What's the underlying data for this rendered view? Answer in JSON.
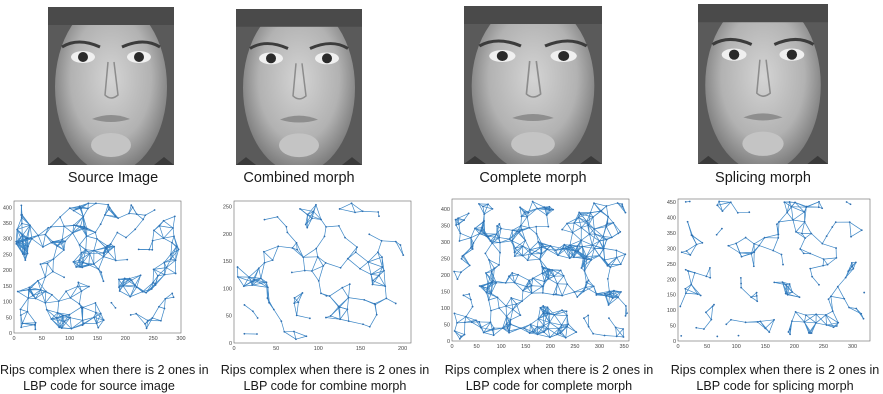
{
  "panels": [
    {
      "face_caption": "Source Image",
      "plot_caption_line1": "Rips complex when there is 2 ones in",
      "plot_caption_line2": "LBP code for source image",
      "density": "high",
      "x_ticks": [
        "0",
        "50",
        "100",
        "150",
        "200",
        "250",
        "300"
      ],
      "y_ticks": [
        "0",
        "50",
        "100",
        "150",
        "200",
        "250",
        "300",
        "350",
        "400"
      ],
      "xlim": [
        0,
        300
      ],
      "ylim": [
        0,
        420
      ]
    },
    {
      "face_caption": "Combined morph",
      "plot_caption_line1": "Rips complex when there is 2 ones in",
      "plot_caption_line2": "LBP code for combine morph",
      "density": "low",
      "x_ticks": [
        "0",
        "50",
        "100",
        "150",
        "200"
      ],
      "y_ticks": [
        "0",
        "50",
        "100",
        "150",
        "200",
        "250"
      ],
      "xlim": [
        0,
        210
      ],
      "ylim": [
        0,
        260
      ]
    },
    {
      "face_caption": "Complete morph",
      "plot_caption_line1": "Rips complex when there is 2 ones in",
      "plot_caption_line2": "LBP code for complete morph",
      "density": "very-high",
      "x_ticks": [
        "0",
        "50",
        "100",
        "150",
        "200",
        "250",
        "300",
        "350"
      ],
      "y_ticks": [
        "0",
        "50",
        "100",
        "150",
        "200",
        "250",
        "300",
        "350",
        "400"
      ],
      "xlim": [
        0,
        360
      ],
      "ylim": [
        0,
        430
      ]
    },
    {
      "face_caption": "Splicing morph",
      "plot_caption_line1": "Rips complex when there is 2 ones in",
      "plot_caption_line2": "LBP code for splicing morph",
      "density": "medium",
      "x_ticks": [
        "0",
        "50",
        "100",
        "150",
        "200",
        "250",
        "300"
      ],
      "y_ticks": [
        "0",
        "50",
        "100",
        "150",
        "200",
        "250",
        "300",
        "350",
        "400",
        "450"
      ],
      "xlim": [
        0,
        330
      ],
      "ylim": [
        0,
        460
      ]
    }
  ],
  "colors": {
    "edge": "#3b86c6",
    "node": "#2f6fb0",
    "axis": "#666666"
  }
}
